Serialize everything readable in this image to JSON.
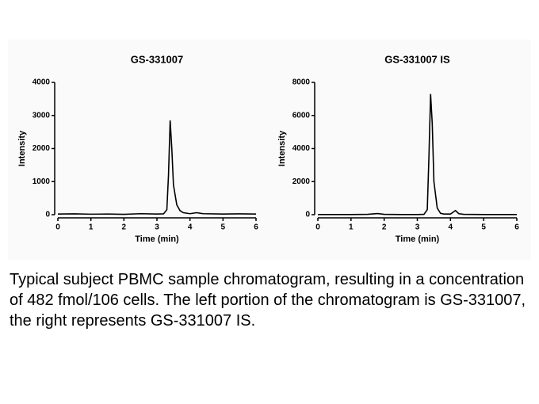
{
  "chart_data": [
    {
      "type": "line",
      "title": "GS-331007",
      "xlabel": "Time (min)",
      "ylabel": "Intensity",
      "xlim": [
        0,
        6
      ],
      "xticks": [
        0,
        1,
        2,
        3,
        4,
        5,
        6
      ],
      "ylim": [
        0,
        4000
      ],
      "yticks": [
        0,
        1000,
        2000,
        3000,
        4000
      ],
      "series": [
        {
          "color": "#000000",
          "x": [
            0,
            0.5,
            1,
            1.5,
            2,
            2.5,
            3,
            3.2,
            3.3,
            3.35,
            3.4,
            3.45,
            3.5,
            3.6,
            3.7,
            3.8,
            4,
            4.2,
            4.4,
            5,
            5.5,
            6
          ],
          "values": [
            20,
            25,
            15,
            20,
            10,
            30,
            20,
            25,
            150,
            1200,
            2850,
            2000,
            900,
            300,
            120,
            60,
            30,
            60,
            30,
            20,
            25,
            20
          ]
        }
      ]
    },
    {
      "type": "line",
      "title": "GS-331007  IS",
      "xlabel": "Time (min)",
      "ylabel": "Intensity",
      "xlim": [
        0,
        6
      ],
      "xticks": [
        0,
        1,
        2,
        3,
        4,
        5,
        6
      ],
      "ylim": [
        0,
        8000
      ],
      "yticks": [
        0,
        2000,
        4000,
        6000,
        8000
      ],
      "series": [
        {
          "color": "#000000",
          "x": [
            0,
            1,
            1.5,
            1.8,
            2,
            2.5,
            3,
            3.2,
            3.3,
            3.35,
            3.4,
            3.45,
            3.5,
            3.6,
            3.7,
            3.8,
            4,
            4.1,
            4.15,
            4.25,
            4.4,
            5,
            6
          ],
          "values": [
            10,
            10,
            20,
            70,
            20,
            10,
            10,
            20,
            300,
            3500,
            7300,
            5500,
            2000,
            400,
            80,
            40,
            40,
            180,
            250,
            60,
            20,
            10,
            10
          ]
        }
      ]
    }
  ],
  "caption": "Typical subject PBMC sample chromatogram, resulting in a concentration of 482 fmol/106 cells. The left portion of the chromatogram is GS-331007, the right represents GS-331007 IS."
}
